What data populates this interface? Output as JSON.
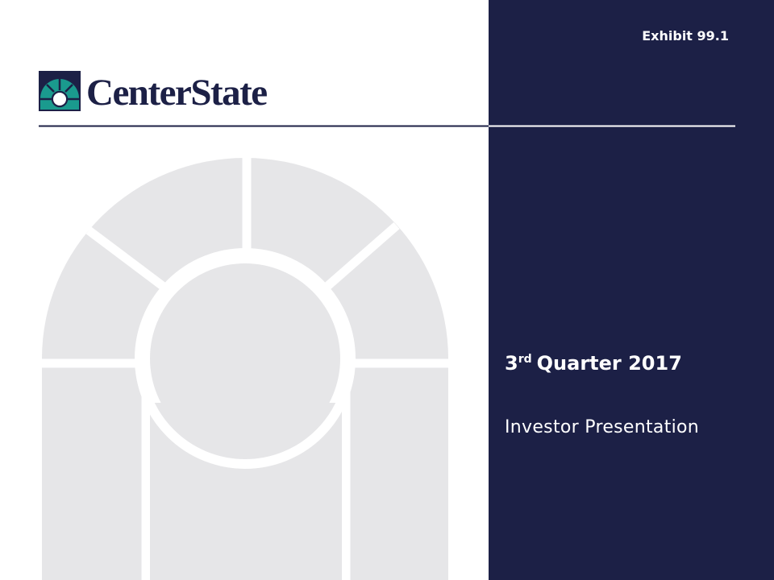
{
  "exhibit": "Exhibit 99.1",
  "logo": {
    "name": "CenterState"
  },
  "title": {
    "number": "3",
    "ordinal_suffix": "rd",
    "rest": "Quarter 2017"
  },
  "subtitle": "Investor Presentation"
}
